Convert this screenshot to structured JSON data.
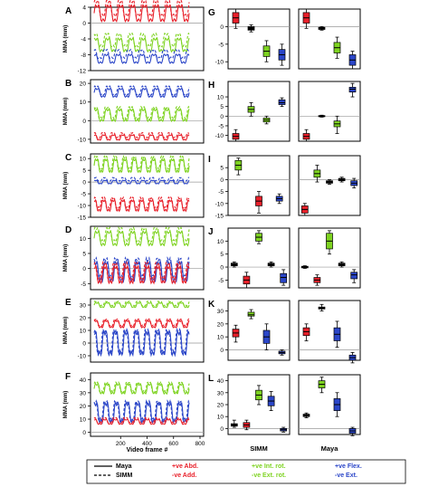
{
  "colors": {
    "red": "#e8202a",
    "green": "#7ed321",
    "blue": "#2b46c8",
    "black": "#000000",
    "gray": "#999999"
  },
  "chart_data": [
    {
      "panel": "A",
      "type": "line",
      "ylabel": "MMA (mm)",
      "yticks": [
        4,
        0,
        -4,
        -8,
        -12
      ],
      "ylim": [
        -12,
        4
      ],
      "series": [
        {
          "color": "red",
          "level": 2.5,
          "amp": 2.2,
          "period": 8
        },
        {
          "color": "green",
          "level": -5.5,
          "amp": 1.8,
          "period": 8
        },
        {
          "color": "blue",
          "level": -9,
          "amp": 1.2,
          "period": 8
        }
      ]
    },
    {
      "panel": "B",
      "type": "line",
      "ylabel": "MMA (mm)",
      "yticks": [
        20,
        10,
        0,
        -10
      ],
      "ylim": [
        -12,
        22
      ],
      "series": [
        {
          "color": "blue",
          "level": 15,
          "amp": 2.5,
          "period": 8
        },
        {
          "color": "green",
          "level": 3,
          "amp": 3.5,
          "period": 8
        },
        {
          "color": "red",
          "level": -9,
          "amp": 1.5,
          "period": 10
        }
      ]
    },
    {
      "panel": "C",
      "type": "line",
      "ylabel": "MMA (mm)",
      "yticks": [
        10,
        5,
        0,
        -5,
        -10,
        -15
      ],
      "ylim": [
        -15,
        12
      ],
      "series": [
        {
          "color": "green",
          "level": 7,
          "amp": 3,
          "period": 10
        },
        {
          "color": "blue",
          "level": 0,
          "amp": 0.8,
          "period": 10
        },
        {
          "color": "red",
          "level": -10,
          "amp": 2.5,
          "period": 10
        }
      ]
    },
    {
      "panel": "D",
      "type": "line",
      "ylabel": "MMA (mm)",
      "yticks": [
        10,
        5,
        0,
        -5
      ],
      "ylim": [
        -7,
        14
      ],
      "series": [
        {
          "color": "green",
          "level": 10,
          "amp": 2.5,
          "period": 8
        },
        {
          "color": "blue",
          "level": -1,
          "amp": 3.5,
          "period": 9
        },
        {
          "color": "red",
          "level": -2,
          "amp": 3,
          "period": 9
        }
      ]
    },
    {
      "panel": "E",
      "type": "line",
      "ylabel": "MMA (mm)",
      "yticks": [
        30,
        20,
        10,
        0,
        -10
      ],
      "ylim": [
        -15,
        35
      ],
      "series": [
        {
          "color": "green",
          "level": 30,
          "amp": 2,
          "period": 9
        },
        {
          "color": "red",
          "level": 15,
          "amp": 3,
          "period": 9
        },
        {
          "color": "blue",
          "level": 0,
          "amp": 10,
          "period": 9
        }
      ]
    },
    {
      "panel": "F",
      "type": "line",
      "ylabel": "MMA (mm)",
      "yticks": [
        40,
        30,
        20,
        10,
        0
      ],
      "ylim": [
        -3,
        45
      ],
      "series": [
        {
          "color": "green",
          "level": 33,
          "amp": 4,
          "period": 9
        },
        {
          "color": "blue",
          "level": 15,
          "amp": 8,
          "period": 9
        },
        {
          "color": "red",
          "level": 8,
          "amp": 2,
          "period": 9
        }
      ],
      "xlabel": "Video frame #",
      "xticks": [
        200,
        400,
        600,
        800
      ]
    }
  ],
  "boxplots": [
    {
      "panel": "G",
      "yticks": [
        0,
        -5,
        -10
      ],
      "ylim": [
        -12,
        5
      ],
      "simm": [
        {
          "color": "red",
          "median": 2.5,
          "q1": 1,
          "q3": 4,
          "min": -0.5,
          "max": 5
        },
        {
          "color": "black",
          "median": -0.5,
          "q1": -1,
          "q3": 0,
          "min": -1.5,
          "max": 0.5
        },
        {
          "color": "green",
          "median": -7,
          "q1": -8.5,
          "q3": -5.5,
          "min": -10,
          "max": -4
        },
        {
          "color": "blue",
          "median": -8,
          "q1": -9.5,
          "q3": -6.5,
          "min": -11,
          "max": -5
        }
      ],
      "maya": [
        {
          "color": "red",
          "median": 2.5,
          "q1": 1,
          "q3": 4,
          "min": -0.5,
          "max": 5
        },
        {
          "color": "black",
          "median": -0.5,
          "q1": -0.8,
          "q3": -0.2,
          "min": -1,
          "max": 0
        },
        {
          "color": "green",
          "median": -6,
          "q1": -7.5,
          "q3": -4.5,
          "min": -9,
          "max": -3
        },
        {
          "color": "blue",
          "median": -9.5,
          "q1": -11,
          "q3": -8,
          "min": -12,
          "max": -7
        }
      ]
    },
    {
      "panel": "H",
      "yticks": [
        10,
        5,
        0,
        -5,
        -10
      ],
      "ylim": [
        -13,
        18
      ],
      "simm": [
        {
          "color": "red",
          "median": -10.5,
          "q1": -12,
          "q3": -9,
          "min": -13,
          "max": -7
        },
        {
          "color": "green",
          "median": 3.5,
          "q1": 2,
          "q3": 5,
          "min": 0,
          "max": 7
        },
        {
          "color": "green",
          "median": -2,
          "q1": -3,
          "q3": -1,
          "min": -4,
          "max": 0
        },
        {
          "color": "blue",
          "median": 7,
          "q1": 6,
          "q3": 8.5,
          "min": 5,
          "max": 9.5
        }
      ],
      "maya": [
        {
          "color": "red",
          "median": -10.5,
          "q1": -12,
          "q3": -9,
          "min": -13,
          "max": -7
        },
        {
          "color": "black",
          "median": 0,
          "q1": -0.3,
          "q3": 0.3,
          "min": -0.5,
          "max": 0.5
        },
        {
          "color": "green",
          "median": -4,
          "q1": -5.5,
          "q3": -2.5,
          "min": -9,
          "max": 0
        },
        {
          "color": "blue",
          "median": 14,
          "q1": 12.5,
          "q3": 15,
          "min": 10,
          "max": 17
        }
      ]
    },
    {
      "panel": "I",
      "yticks": [
        5,
        0,
        -5,
        -10,
        -15
      ],
      "ylim": [
        -15,
        10
      ],
      "simm": [
        {
          "color": "green",
          "median": 6,
          "q1": 4,
          "q3": 8,
          "min": 2,
          "max": 9
        },
        {
          "color": "red",
          "median": -9,
          "q1": -11,
          "q3": -7,
          "min": -14,
          "max": -5
        },
        {
          "color": "blue",
          "median": -8,
          "q1": -9,
          "q3": -7,
          "min": -10,
          "max": -6
        }
      ],
      "maya": [
        {
          "color": "red",
          "median": -12.5,
          "q1": -14,
          "q3": -11,
          "min": -15,
          "max": -10
        },
        {
          "color": "green",
          "median": 2.5,
          "q1": 1,
          "q3": 4,
          "min": -1,
          "max": 6
        },
        {
          "color": "black",
          "median": -1,
          "q1": -1.5,
          "q3": -0.5,
          "min": -2,
          "max": 0
        },
        {
          "color": "black",
          "median": 0,
          "q1": -0.5,
          "q3": 0.5,
          "min": -1,
          "max": 1
        },
        {
          "color": "blue",
          "median": -1.5,
          "q1": -2.5,
          "q3": -0.5,
          "min": -3.5,
          "max": 0.5
        }
      ]
    },
    {
      "panel": "J",
      "yticks": [
        10,
        5,
        0,
        -5
      ],
      "ylim": [
        -8,
        15
      ],
      "simm": [
        {
          "color": "black",
          "median": 1,
          "q1": 0.5,
          "q3": 1.5,
          "min": 0,
          "max": 2
        },
        {
          "color": "red",
          "median": -5,
          "q1": -6.5,
          "q3": -3.5,
          "min": -8,
          "max": -2
        },
        {
          "color": "green",
          "median": 11.5,
          "q1": 10,
          "q3": 13,
          "min": 9,
          "max": 14
        },
        {
          "color": "black",
          "median": 1,
          "q1": 0.5,
          "q3": 1.5,
          "min": 0,
          "max": 2
        },
        {
          "color": "blue",
          "median": -4,
          "q1": -6,
          "q3": -2.5,
          "min": -7,
          "max": -1
        }
      ],
      "maya": [
        {
          "color": "black",
          "median": 0,
          "q1": -0.3,
          "q3": 0.3,
          "min": -0.5,
          "max": 0.5
        },
        {
          "color": "red",
          "median": -5,
          "q1": -6,
          "q3": -4,
          "min": -7,
          "max": -3
        },
        {
          "color": "green",
          "median": 10,
          "q1": 7,
          "q3": 13,
          "min": 5,
          "max": 14
        },
        {
          "color": "black",
          "median": 1,
          "q1": 0.5,
          "q3": 1.5,
          "min": 0,
          "max": 2
        },
        {
          "color": "blue",
          "median": -3,
          "q1": -4.5,
          "q3": -2,
          "min": -6,
          "max": -1
        }
      ]
    },
    {
      "panel": "K",
      "yticks": [
        30,
        20,
        10,
        0
      ],
      "ylim": [
        -8,
        38
      ],
      "simm": [
        {
          "color": "red",
          "median": 13,
          "q1": 10,
          "q3": 16,
          "min": 6,
          "max": 19
        },
        {
          "color": "green",
          "median": 27,
          "q1": 26,
          "q3": 29,
          "min": 24,
          "max": 31
        },
        {
          "color": "blue",
          "median": 10,
          "q1": 5,
          "q3": 15,
          "min": 0,
          "max": 20
        },
        {
          "color": "blue",
          "median": -2,
          "q1": -3,
          "q3": -1,
          "min": -4,
          "max": 0
        }
      ],
      "maya": [
        {
          "color": "red",
          "median": 14,
          "q1": 11,
          "q3": 17,
          "min": 7,
          "max": 20
        },
        {
          "color": "black",
          "median": 32,
          "q1": 31.5,
          "q3": 33,
          "min": 30,
          "max": 35
        },
        {
          "color": "blue",
          "median": 12,
          "q1": 7,
          "q3": 17,
          "min": 2,
          "max": 22
        },
        {
          "color": "blue",
          "median": -6,
          "q1": -8,
          "q3": -4,
          "min": -10,
          "max": -2
        }
      ]
    },
    {
      "panel": "L",
      "yticks": [
        40,
        30,
        20,
        10,
        0
      ],
      "ylim": [
        -5,
        45
      ],
      "simm": [
        {
          "color": "black",
          "median": 3,
          "q1": 2,
          "q3": 4,
          "min": 1,
          "max": 7
        },
        {
          "color": "red",
          "median": 3,
          "q1": 1,
          "q3": 5,
          "min": -1,
          "max": 7
        },
        {
          "color": "green",
          "median": 28,
          "q1": 24,
          "q3": 32,
          "min": 20,
          "max": 36
        },
        {
          "color": "blue",
          "median": 23,
          "q1": 19,
          "q3": 27,
          "min": 15,
          "max": 31
        },
        {
          "color": "blue",
          "median": -1,
          "q1": -2,
          "q3": 0,
          "min": -3,
          "max": 1
        }
      ],
      "maya": [
        {
          "color": "black",
          "median": 11,
          "q1": 10,
          "q3": 12,
          "min": 9,
          "max": 13
        },
        {
          "color": "green",
          "median": 37,
          "q1": 34,
          "q3": 40,
          "min": 30,
          "max": 43
        },
        {
          "color": "blue",
          "median": 20,
          "q1": 15,
          "q3": 25,
          "min": 10,
          "max": 30
        },
        {
          "color": "blue",
          "median": -2,
          "q1": -4,
          "q3": 0,
          "min": -6,
          "max": 1
        }
      ]
    }
  ],
  "column_labels": {
    "simm": "SIMM",
    "maya": "Maya"
  },
  "legend": {
    "line_items": [
      {
        "style": "solid",
        "label": "Maya"
      },
      {
        "style": "dashed",
        "label": "SIMM"
      }
    ],
    "groups": [
      {
        "color": "red",
        "lines": [
          "+ve Abd.",
          "-ve Add."
        ]
      },
      {
        "color": "green",
        "lines": [
          "+ve Int. rot.",
          "-ve Ext. rot."
        ]
      },
      {
        "color": "blue",
        "lines": [
          "+ve Flex.",
          "-ve Ext."
        ]
      }
    ]
  }
}
